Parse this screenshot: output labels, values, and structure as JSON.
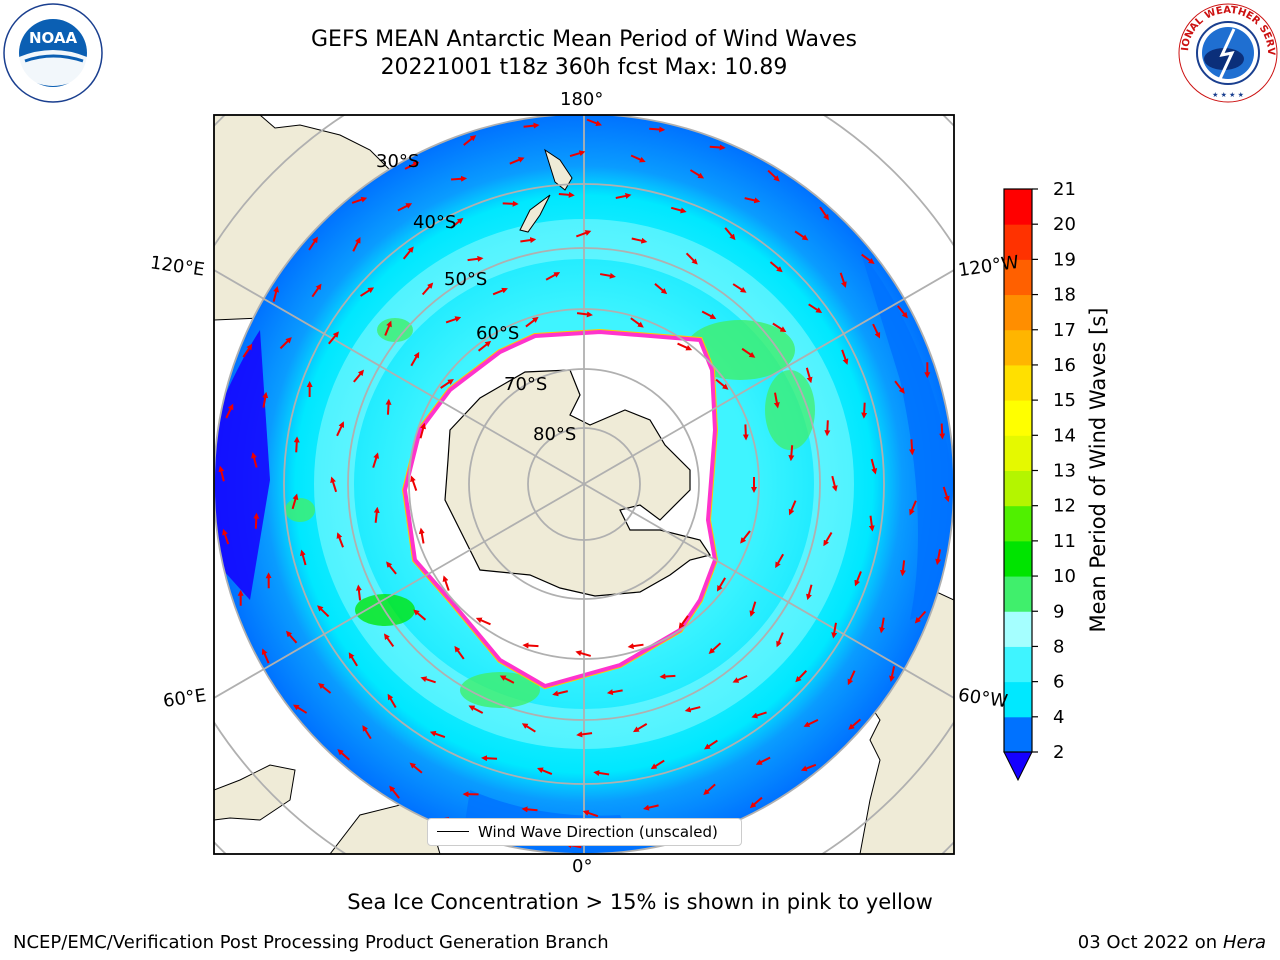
{
  "header": {
    "title_line1": "GEFS MEAN Antarctic Mean Period of Wind Waves",
    "title_line2": "20221001 t18z 360h fcst   Max: 10.89"
  },
  "logos": {
    "noaa": {
      "icon": "noaa-logo",
      "text": "NOAA"
    },
    "nws": {
      "icon": "national-weather-service-logo",
      "text": "NATIONAL WEATHER SERVICE"
    }
  },
  "map": {
    "projection": "south-polar-stereographic",
    "lon_labels": [
      "180°",
      "120°E",
      "120°W",
      "60°E",
      "60°W",
      "0°"
    ],
    "lat_labels": [
      "30°S",
      "40°S",
      "50°S",
      "60°S",
      "70°S",
      "80°S"
    ],
    "colors": {
      "land": "#efebd7",
      "sea_ice_open": "#ffffff",
      "ice_edge_pink": "#ff33cc",
      "ice_edge_yellow": "#ffc800",
      "arrow": "#ee0000",
      "graticule": "#b0b0b0"
    }
  },
  "colorbar": {
    "label": "Mean Period of Wind Waves [s]",
    "ticks": [
      "2",
      "4",
      "6",
      "8",
      "9",
      "10",
      "11",
      "12",
      "13",
      "14",
      "15",
      "16",
      "17",
      "18",
      "19",
      "20",
      "21"
    ],
    "bins": [
      {
        "from": 2,
        "to": 4,
        "color": "#0072ff"
      },
      {
        "from": 4,
        "to": 6,
        "color": "#00e8ff"
      },
      {
        "from": 6,
        "to": 8,
        "color": "#3ff4ff"
      },
      {
        "from": 8,
        "to": 9,
        "color": "#a5ffff"
      },
      {
        "from": 9,
        "to": 10,
        "color": "#40ef6c"
      },
      {
        "from": 10,
        "to": 11,
        "color": "#00e400"
      },
      {
        "from": 11,
        "to": 12,
        "color": "#50f000"
      },
      {
        "from": 12,
        "to": 13,
        "color": "#b4f500"
      },
      {
        "from": 13,
        "to": 14,
        "color": "#e5f900"
      },
      {
        "from": 14,
        "to": 15,
        "color": "#ffff00"
      },
      {
        "from": 15,
        "to": 16,
        "color": "#ffe000"
      },
      {
        "from": 16,
        "to": 17,
        "color": "#ffb500"
      },
      {
        "from": 17,
        "to": 18,
        "color": "#ff8e00"
      },
      {
        "from": 18,
        "to": 19,
        "color": "#ff6000"
      },
      {
        "from": 19,
        "to": 20,
        "color": "#ff3200"
      },
      {
        "from": 20,
        "to": 21,
        "color": "#ff0000"
      }
    ],
    "under_color": "#1500ff"
  },
  "legend": {
    "label": "Wind Wave Direction (unscaled)"
  },
  "footnote": "Sea Ice Concentration > 15% is shown in pink to yellow",
  "credits": {
    "left": "NCEP/EMC/Verification Post Processing Product Generation Branch",
    "right_prefix": "03 Oct 2022 on ",
    "right_host": "Hera"
  }
}
